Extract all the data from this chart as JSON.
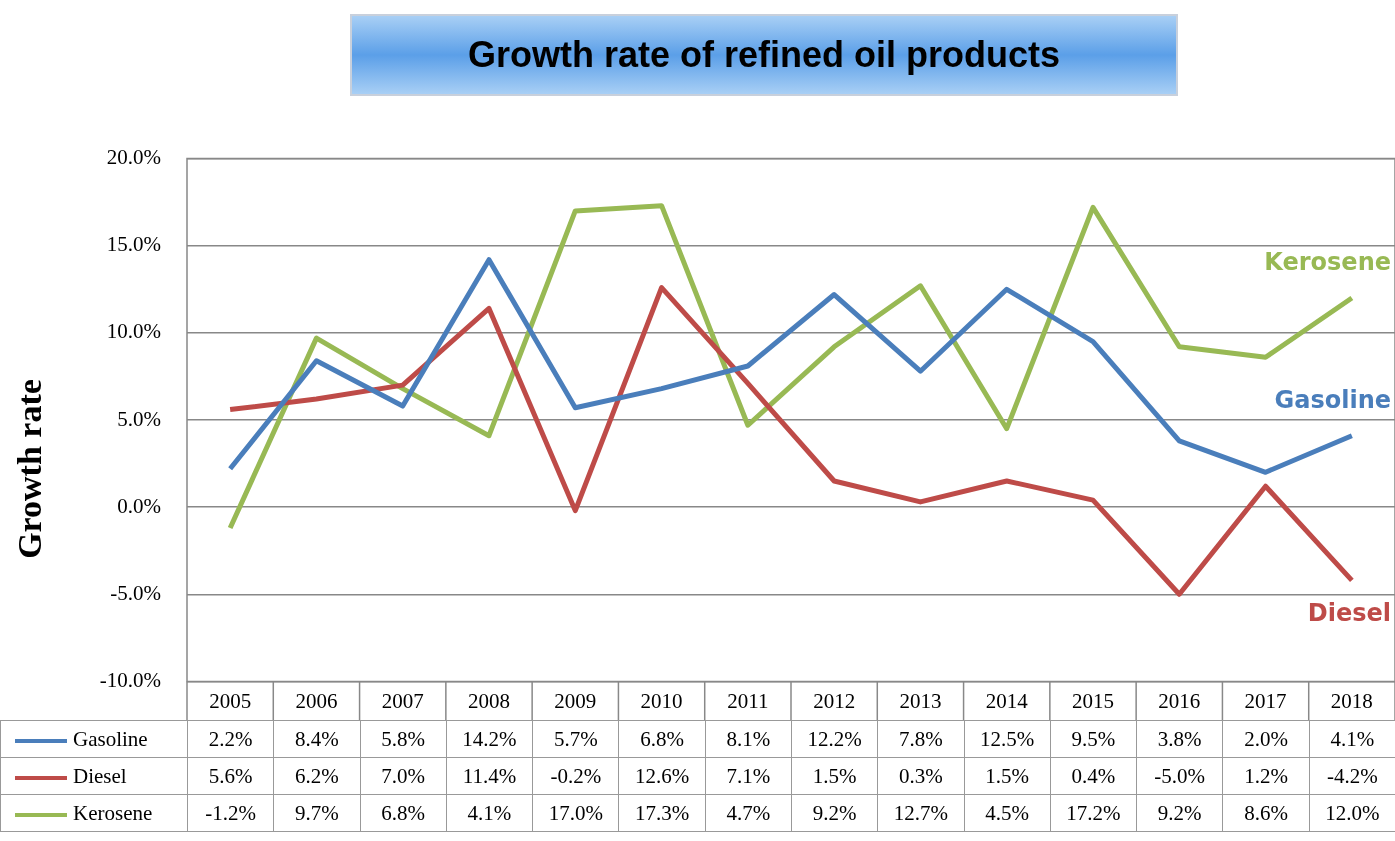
{
  "chart_data": {
    "type": "line",
    "title": "Growth rate of refined oil products",
    "ylabel": "Growth rate",
    "categories": [
      "2005",
      "2006",
      "2007",
      "2008",
      "2009",
      "2010",
      "2011",
      "2012",
      "2013",
      "2014",
      "2015",
      "2016",
      "2017",
      "2018"
    ],
    "series": [
      {
        "name": "Gasoline",
        "color": "#4a7ebb",
        "values": [
          2.2,
          8.4,
          5.8,
          14.2,
          5.7,
          6.8,
          8.1,
          12.2,
          7.8,
          12.5,
          9.5,
          3.8,
          2.0,
          4.1
        ],
        "value_labels": [
          "2.2%",
          "8.4%",
          "5.8%",
          "14.2%",
          "5.7%",
          "6.8%",
          "8.1%",
          "12.2%",
          "7.8%",
          "12.5%",
          "9.5%",
          "3.8%",
          "2.0%",
          "4.1%"
        ]
      },
      {
        "name": "Diesel",
        "color": "#be4b48",
        "values": [
          5.6,
          6.2,
          7.0,
          11.4,
          -0.2,
          12.6,
          7.1,
          1.5,
          0.3,
          1.5,
          0.4,
          -5.0,
          1.2,
          -4.2
        ],
        "value_labels": [
          "5.6%",
          "6.2%",
          "7.0%",
          "11.4%",
          "-0.2%",
          "12.6%",
          "7.1%",
          "1.5%",
          "0.3%",
          "1.5%",
          "0.4%",
          "-5.0%",
          "1.2%",
          "-4.2%"
        ]
      },
      {
        "name": "Kerosene",
        "color": "#98b954",
        "values": [
          -1.2,
          9.7,
          6.8,
          4.1,
          17.0,
          17.3,
          4.7,
          9.2,
          12.7,
          4.5,
          17.2,
          9.2,
          8.6,
          12.0
        ],
        "value_labels": [
          "-1.2%",
          "9.7%",
          "6.8%",
          "4.1%",
          "17.0%",
          "17.3%",
          "4.7%",
          "9.2%",
          "12.7%",
          "4.5%",
          "17.2%",
          "9.2%",
          "8.6%",
          "12.0%"
        ]
      }
    ],
    "ylim": [
      -10,
      20
    ],
    "yticks": [
      {
        "value": -10,
        "label": "-10.0%"
      },
      {
        "value": -5,
        "label": "-5.0%"
      },
      {
        "value": 0,
        "label": "0.0%"
      },
      {
        "value": 5,
        "label": "5.0%"
      },
      {
        "value": 10,
        "label": "10.0%"
      },
      {
        "value": 15,
        "label": "15.0%"
      },
      {
        "value": 20,
        "label": "20.0%"
      }
    ],
    "grid": "y",
    "legend": "bottom",
    "marker": "none",
    "line_style": "solid"
  }
}
